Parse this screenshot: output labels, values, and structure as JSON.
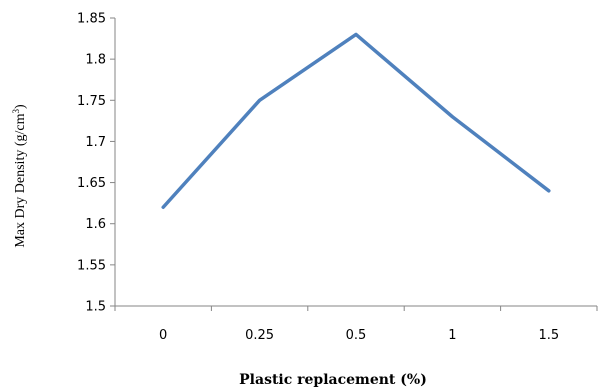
{
  "chart_data": {
    "type": "line",
    "categories": [
      "0",
      "0.25",
      "0.5",
      "1",
      "1.5"
    ],
    "series": [
      {
        "values": [
          1.62,
          1.75,
          1.83,
          1.73,
          1.64
        ],
        "color": "#4F81BD"
      }
    ],
    "xlabel": "Plastic replacement (%)",
    "ylabel": "Max Dry Density (g/cm",
    "ylabel_superscript": "3",
    "ylabel_suffix": ")",
    "ylim": [
      1.5,
      1.85
    ],
    "yticks": [
      "1.5",
      "1.55",
      "1.6",
      "1.65",
      "1.7",
      "1.75",
      "1.8",
      "1.85"
    ],
    "grid": false,
    "legend": "none"
  }
}
